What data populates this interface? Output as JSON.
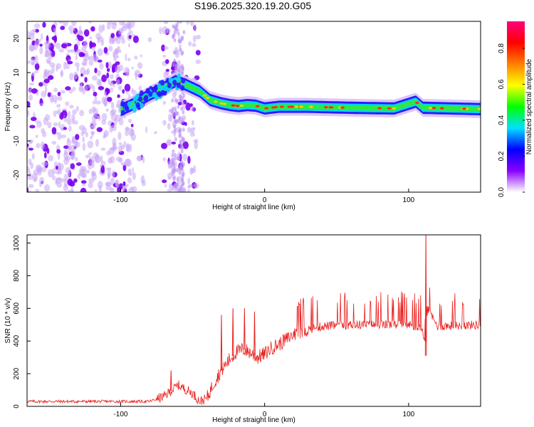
{
  "title": "S196.2025.320.19.20.G05",
  "chart_data": [
    {
      "type": "heatmap",
      "xlabel": "Height of straight line (km)",
      "ylabel": "Frequency (Hz)",
      "xlim": [
        -165,
        150
      ],
      "ylim": [
        -25,
        25
      ],
      "xticks": [
        -100,
        0,
        100
      ],
      "yticks": [
        -20,
        -10,
        0,
        10,
        20
      ],
      "colorbar": {
        "label": "Normalized spectral amplitude",
        "range": [
          0,
          0.95
        ],
        "ticks": [
          0.0,
          0.2,
          0.4,
          0.6,
          0.8
        ],
        "colors": [
          "#ffffff",
          "#8a00ff",
          "#0000ff",
          "#00e0ff",
          "#00ff00",
          "#ffff00",
          "#ff8000",
          "#ff0000",
          "#ff0080"
        ]
      },
      "ridge": {
        "x": [
          -100,
          -90,
          -80,
          -70,
          -62,
          -55,
          -45,
          -38,
          -30,
          -24,
          -18,
          -12,
          -6,
          0,
          10,
          30,
          60,
          90,
          105,
          110,
          130,
          150
        ],
        "y": [
          -1,
          1,
          3.5,
          5.5,
          7.5,
          6.5,
          4.5,
          2,
          1,
          0.5,
          0.2,
          0.5,
          0.3,
          -0.5,
          0,
          0,
          -0.3,
          -0.5,
          1.5,
          -0.3,
          -0.5,
          -0.7
        ]
      }
    },
    {
      "type": "line",
      "xlabel": "Height of straight line (km)",
      "ylabel": "SNR (10 * v/v)",
      "xlim": [
        -165,
        150
      ],
      "ylim": [
        0,
        1050
      ],
      "xticks": [
        -100,
        0,
        100
      ],
      "yticks": [
        0,
        200,
        400,
        600,
        800,
        1000
      ],
      "color": "#e8201e",
      "series": [
        {
          "name": "SNR",
          "x": [
            -165,
            -80,
            -70,
            -60,
            -50,
            -45,
            -40,
            -35,
            -30,
            -25,
            -20,
            -15,
            -10,
            -5,
            0,
            5,
            10,
            20,
            30,
            40,
            60,
            80,
            100,
            110,
            112,
            113,
            120,
            150
          ],
          "y": [
            30,
            30,
            60,
            130,
            80,
            30,
            50,
            150,
            220,
            280,
            330,
            350,
            330,
            300,
            320,
            360,
            380,
            440,
            470,
            490,
            500,
            500,
            500,
            470,
            310,
            600,
            490,
            500
          ]
        }
      ],
      "spikes": [
        {
          "x": -65,
          "y": 220
        },
        {
          "x": -30,
          "y": 560
        },
        {
          "x": -22,
          "y": 600
        },
        {
          "x": -14,
          "y": 600
        },
        {
          "x": -7,
          "y": 580
        },
        {
          "x": 112,
          "y": 1050
        }
      ]
    }
  ]
}
